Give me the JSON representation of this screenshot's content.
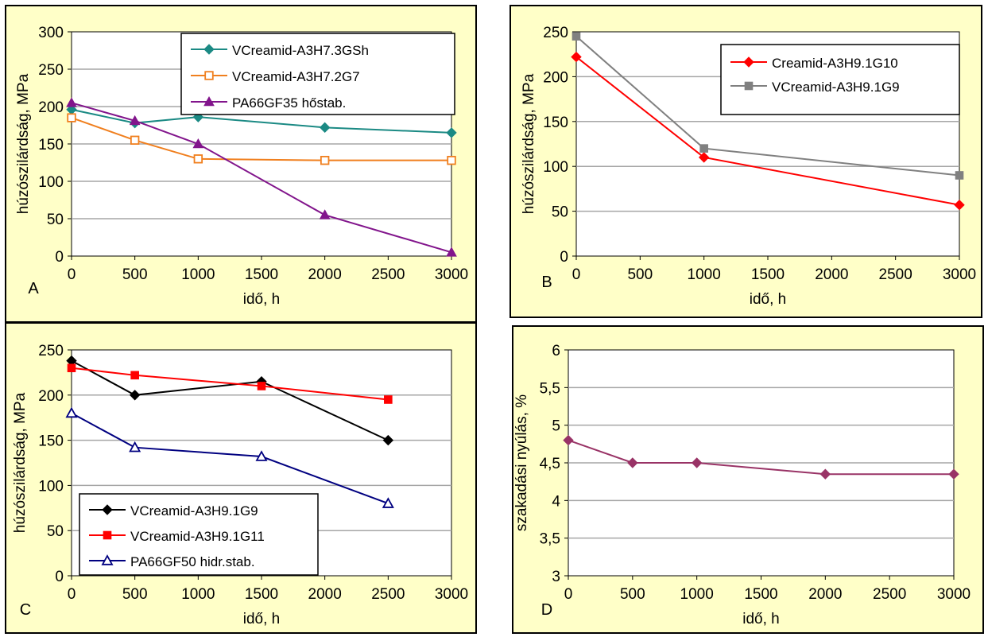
{
  "colors": {
    "panel_bg": "#ffffc8",
    "plot_bg": "#ffffff",
    "grid": "#a6a6a6",
    "frame": "#000000"
  },
  "chart_data": [
    {
      "panel_letter": "A",
      "type": "line",
      "xlabel": "idő, h",
      "ylabel": "húzószilárdság, MPa",
      "xlim": [
        0,
        3000
      ],
      "ylim": [
        0,
        300
      ],
      "xticks": [
        "0",
        "500",
        "1000",
        "1500",
        "2000",
        "2500",
        "3000"
      ],
      "yticks": [
        "0",
        "50",
        "100",
        "150",
        "200",
        "250",
        "300"
      ],
      "grid": "horizontal",
      "legend_position": "top-right",
      "series": [
        {
          "name": "VCreamid-A3H7.3GSh",
          "color": "#1b8a84",
          "marker": "diamond-filled",
          "x": [
            0,
            500,
            1000,
            2000,
            3000
          ],
          "y": [
            196,
            178,
            186,
            172,
            165
          ]
        },
        {
          "name": "VCreamid-A3H7.2G7",
          "color": "#f07f1e",
          "marker": "square-open",
          "x": [
            0,
            500,
            1000,
            2000,
            3000
          ],
          "y": [
            185,
            155,
            130,
            128,
            128
          ]
        },
        {
          "name": "PA66GF35 hőstab.",
          "color": "#82158c",
          "marker": "triangle-filled",
          "x": [
            0,
            500,
            1000,
            2000,
            3000
          ],
          "y": [
            205,
            181,
            150,
            55,
            5
          ]
        }
      ]
    },
    {
      "panel_letter": "B",
      "type": "line",
      "xlabel": "idő, h",
      "ylabel": "húzószilárdság, MPa",
      "xlim": [
        0,
        3000
      ],
      "ylim": [
        0,
        250
      ],
      "xticks": [
        "0",
        "500",
        "1000",
        "1500",
        "2000",
        "2500",
        "3000"
      ],
      "yticks": [
        "0",
        "50",
        "100",
        "150",
        "200",
        "250"
      ],
      "grid": "horizontal",
      "legend_position": "top-right",
      "series": [
        {
          "name": "Creamid-A3H9.1G10",
          "color": "#ff0000",
          "marker": "diamond-filled",
          "x": [
            0,
            1000,
            3000
          ],
          "y": [
            222,
            110,
            57
          ]
        },
        {
          "name": "VCreamid-A3H9.1G9",
          "color": "#808080",
          "marker": "square-filled",
          "x": [
            0,
            1000,
            3000
          ],
          "y": [
            245,
            120,
            90
          ]
        }
      ]
    },
    {
      "panel_letter": "C",
      "type": "line",
      "xlabel": "idő, h",
      "ylabel": "húzószilárdság, MPa",
      "xlim": [
        0,
        3000
      ],
      "ylim": [
        0,
        250
      ],
      "xticks": [
        "0",
        "500",
        "1000",
        "1500",
        "2000",
        "2500",
        "3000"
      ],
      "yticks": [
        "0",
        "50",
        "100",
        "150",
        "200",
        "250"
      ],
      "grid": "horizontal",
      "legend_position": "bottom-left",
      "series": [
        {
          "name": "VCreamid-A3H9.1G9",
          "color": "#000000",
          "marker": "diamond-filled",
          "x": [
            0,
            500,
            1500,
            2500
          ],
          "y": [
            238,
            200,
            215,
            150
          ]
        },
        {
          "name": "VCreamid-A3H9.1G11",
          "color": "#ff0000",
          "marker": "square-filled",
          "x": [
            0,
            500,
            1500,
            2500
          ],
          "y": [
            230,
            222,
            210,
            195
          ]
        },
        {
          "name": "PA66GF50 hidr.stab.",
          "color": "#000080",
          "marker": "triangle-open",
          "x": [
            0,
            500,
            1500,
            2500
          ],
          "y": [
            180,
            142,
            132,
            80
          ]
        }
      ]
    },
    {
      "panel_letter": "D",
      "type": "line",
      "xlabel": "idő, h",
      "ylabel": "szakadási nyúlás, %",
      "xlim": [
        0,
        3000
      ],
      "ylim": [
        3,
        6
      ],
      "xticks": [
        "0",
        "500",
        "1000",
        "1500",
        "2000",
        "2500",
        "3000"
      ],
      "yticks": [
        "3",
        "3,5",
        "4",
        "4,5",
        "5",
        "5,5",
        "6"
      ],
      "grid": "horizontal",
      "legend_position": "none",
      "series": [
        {
          "color": "#993366",
          "marker": "diamond-filled",
          "x": [
            0,
            500,
            1000,
            2000,
            3000
          ],
          "y": [
            4.8,
            4.5,
            4.5,
            4.35,
            4.35
          ]
        }
      ]
    }
  ]
}
